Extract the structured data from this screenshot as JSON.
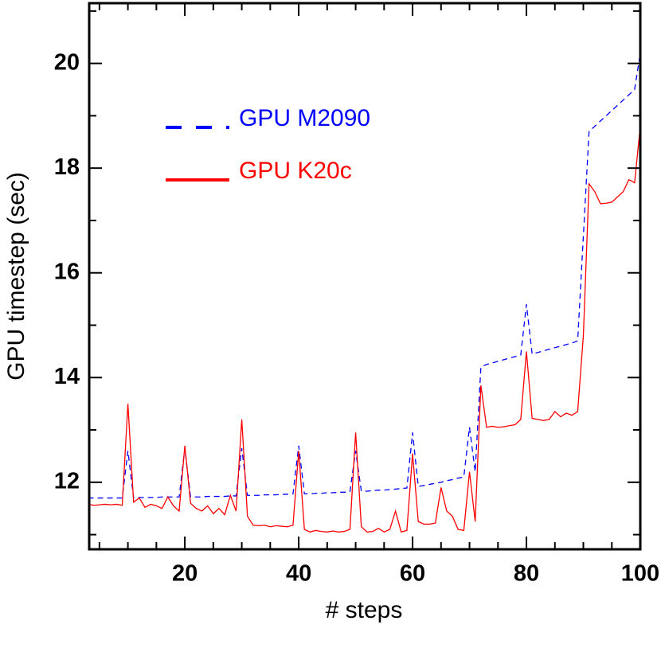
{
  "chart_data": {
    "type": "line",
    "xlabel": "# steps",
    "ylabel": "GPU timestep (sec)",
    "xlim": [
      3.2,
      100
    ],
    "xticks": [
      20,
      40,
      60,
      80,
      100
    ],
    "xticks_minor": [
      5,
      10,
      15,
      25,
      30,
      35,
      45,
      50,
      55,
      65,
      70,
      75,
      85,
      90,
      95
    ],
    "ylim": [
      10.72,
      21.15
    ],
    "yticks": [
      12,
      14,
      16,
      18,
      20
    ],
    "yticks_minor": [
      11,
      13,
      15,
      17,
      19,
      21
    ],
    "legend": "upper left",
    "x": [
      3,
      4,
      5,
      6,
      7,
      8,
      9,
      10,
      11,
      12,
      13,
      14,
      15,
      16,
      17,
      18,
      19,
      20,
      21,
      22,
      23,
      24,
      25,
      26,
      27,
      28,
      29,
      30,
      31,
      32,
      33,
      34,
      35,
      36,
      37,
      38,
      39,
      40,
      41,
      42,
      43,
      44,
      45,
      46,
      47,
      48,
      49,
      50,
      51,
      52,
      53,
      54,
      55,
      56,
      57,
      58,
      59,
      60,
      61,
      62,
      63,
      64,
      65,
      66,
      67,
      68,
      69,
      70,
      71,
      72,
      73,
      74,
      75,
      76,
      77,
      78,
      79,
      80,
      81,
      82,
      83,
      84,
      85,
      86,
      87,
      88,
      89,
      90,
      91,
      92,
      93,
      94,
      95,
      96,
      97,
      98,
      99,
      100
    ],
    "series": [
      {
        "name": "GPU M2090",
        "color": "#0000ff",
        "dash": true,
        "values": [
          11.7,
          11.7,
          11.7,
          11.7,
          11.7,
          11.7,
          11.7,
          12.6,
          11.7,
          11.71,
          11.71,
          11.71,
          11.71,
          11.72,
          11.72,
          11.72,
          11.72,
          12.65,
          11.72,
          11.72,
          11.72,
          11.73,
          11.73,
          11.73,
          11.73,
          11.74,
          11.74,
          12.65,
          11.75,
          11.75,
          11.75,
          11.76,
          11.76,
          11.76,
          11.77,
          11.77,
          11.78,
          12.7,
          11.78,
          11.78,
          11.79,
          11.79,
          11.8,
          11.8,
          11.81,
          11.81,
          11.82,
          12.6,
          11.83,
          11.83,
          11.84,
          11.85,
          11.85,
          11.86,
          11.87,
          11.88,
          11.89,
          12.95,
          11.92,
          11.94,
          11.96,
          11.98,
          12.0,
          12.03,
          12.05,
          12.08,
          12.1,
          13.05,
          12.2,
          14.2,
          14.25,
          14.28,
          14.31,
          14.34,
          14.37,
          14.4,
          14.43,
          15.4,
          14.45,
          14.48,
          14.51,
          14.54,
          14.57,
          14.6,
          14.63,
          14.66,
          14.7,
          16.7,
          18.7,
          18.8,
          18.9,
          19.0,
          19.1,
          19.2,
          19.3,
          19.4,
          19.5,
          20.2
        ]
      },
      {
        "name": "GPU K20c",
        "color": "#ff0000",
        "dash": false,
        "values": [
          11.58,
          11.56,
          11.57,
          11.58,
          11.57,
          11.58,
          11.56,
          13.5,
          11.62,
          11.7,
          11.52,
          11.58,
          11.55,
          11.5,
          11.72,
          11.55,
          11.45,
          12.7,
          11.6,
          11.5,
          11.45,
          11.55,
          11.4,
          11.5,
          11.38,
          11.75,
          11.45,
          13.2,
          11.35,
          11.18,
          11.17,
          11.18,
          11.15,
          11.17,
          11.16,
          11.15,
          11.18,
          12.6,
          11.1,
          11.05,
          11.08,
          11.06,
          11.05,
          11.07,
          11.05,
          11.06,
          11.1,
          12.95,
          11.15,
          11.05,
          11.06,
          11.12,
          11.05,
          11.1,
          11.45,
          11.05,
          11.08,
          12.55,
          11.25,
          11.2,
          11.2,
          11.22,
          11.9,
          11.45,
          11.35,
          11.1,
          11.08,
          12.2,
          11.25,
          13.85,
          13.05,
          13.07,
          13.05,
          13.06,
          13.08,
          13.1,
          13.2,
          14.5,
          13.22,
          13.2,
          13.18,
          13.2,
          13.35,
          13.25,
          13.32,
          13.28,
          13.35,
          14.8,
          17.7,
          17.55,
          17.32,
          17.33,
          17.35,
          17.45,
          17.55,
          17.78,
          17.72,
          18.8
        ]
      }
    ]
  }
}
